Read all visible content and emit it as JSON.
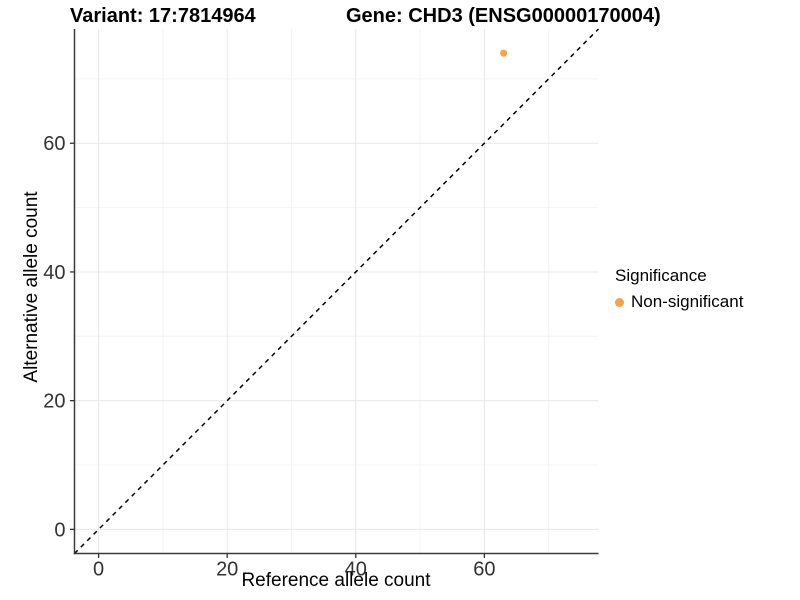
{
  "chart_data": {
    "type": "scatter",
    "titles": [
      "Variant: 17:7814964",
      "Gene: CHD3 (ENSG00000170004)"
    ],
    "xlabel": "Reference allele count",
    "ylabel": "Alternative allele count",
    "xlim": [
      -3.75,
      77.75
    ],
    "ylim": [
      -3.75,
      77.75
    ],
    "x_ticks": [
      0,
      20,
      40,
      60
    ],
    "y_ticks": [
      0,
      20,
      40,
      60
    ],
    "x_minor_ticks": [
      10,
      30,
      50,
      70
    ],
    "y_minor_ticks": [
      10,
      30,
      50,
      70
    ],
    "grid": "major+minor",
    "reference_line": {
      "kind": "identity y=x",
      "style": "dashed",
      "color": "#000000"
    },
    "series": [
      {
        "name": "Non-significant",
        "color": "#F9A242",
        "points": [
          {
            "x": 63,
            "y": 74
          }
        ]
      }
    ],
    "legend": {
      "title": "Significance",
      "position": "right",
      "items": [
        {
          "label": "Non-significant",
          "color": "#F9A242",
          "marker": "circle"
        }
      ]
    },
    "colors": {
      "grid_major": "#E8E8E8",
      "grid_minor": "#F4F4F4",
      "axis_line": "#3a3a3a",
      "tick_text": "#333333"
    }
  }
}
